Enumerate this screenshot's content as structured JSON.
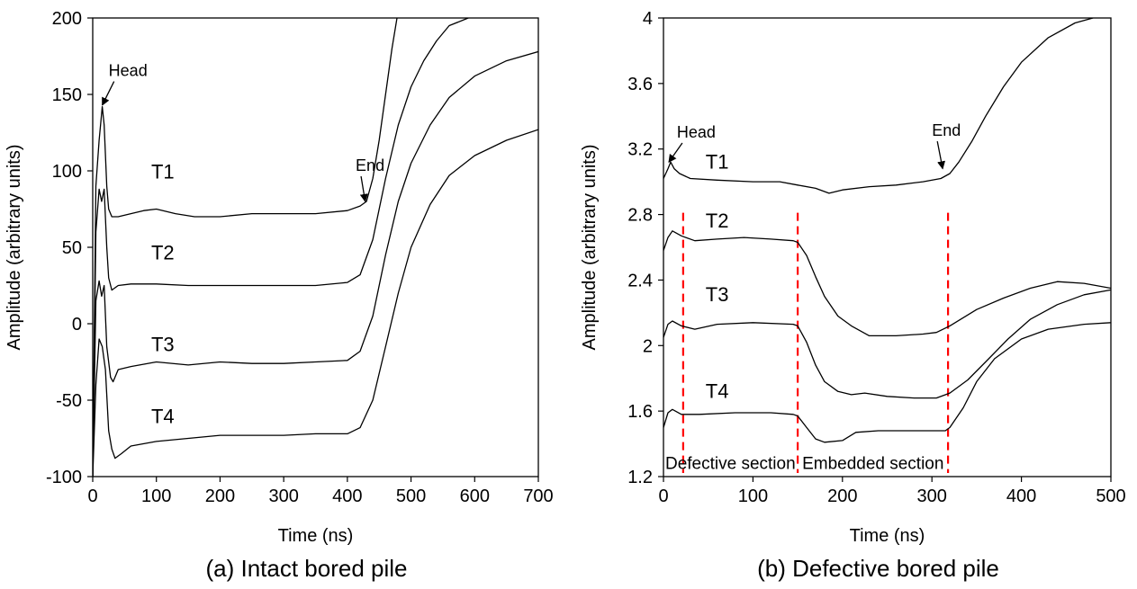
{
  "chart_data": [
    {
      "type": "line",
      "caption": "(a) Intact bored pile",
      "xlabel": "Time (ns)",
      "ylabel": "Amplitude (arbitrary units)",
      "xlim": [
        0,
        700
      ],
      "ylim": [
        -100,
        200
      ],
      "xticks": [
        0,
        100,
        200,
        300,
        400,
        500,
        600,
        700
      ],
      "yticks": [
        -100,
        -50,
        0,
        50,
        100,
        150,
        200
      ],
      "grid": false,
      "series": [
        {
          "name": "T1",
          "label_at": [
            110,
            95
          ],
          "points": [
            [
              0,
              -100
            ],
            [
              5,
              90
            ],
            [
              10,
              120
            ],
            [
              15,
              142
            ],
            [
              18,
              130
            ],
            [
              22,
              90
            ],
            [
              25,
              75
            ],
            [
              30,
              70
            ],
            [
              40,
              70
            ],
            [
              60,
              72
            ],
            [
              80,
              74
            ],
            [
              100,
              75
            ],
            [
              130,
              72
            ],
            [
              160,
              70
            ],
            [
              200,
              70
            ],
            [
              250,
              72
            ],
            [
              300,
              72
            ],
            [
              350,
              72
            ],
            [
              400,
              74
            ],
            [
              420,
              77
            ],
            [
              430,
              80
            ],
            [
              440,
              95
            ],
            [
              450,
              120
            ],
            [
              460,
              150
            ],
            [
              470,
              180
            ],
            [
              478,
              200
            ]
          ]
        },
        {
          "name": "T2",
          "label_at": [
            110,
            42
          ],
          "points": [
            [
              0,
              -100
            ],
            [
              5,
              60
            ],
            [
              10,
              88
            ],
            [
              14,
              80
            ],
            [
              18,
              88
            ],
            [
              22,
              50
            ],
            [
              25,
              30
            ],
            [
              30,
              22
            ],
            [
              40,
              25
            ],
            [
              60,
              26
            ],
            [
              100,
              26
            ],
            [
              150,
              25
            ],
            [
              200,
              25
            ],
            [
              250,
              25
            ],
            [
              300,
              25
            ],
            [
              350,
              25
            ],
            [
              400,
              27
            ],
            [
              420,
              32
            ],
            [
              440,
              55
            ],
            [
              460,
              95
            ],
            [
              480,
              130
            ],
            [
              500,
              155
            ],
            [
              520,
              172
            ],
            [
              540,
              185
            ],
            [
              560,
              195
            ],
            [
              590,
              200
            ]
          ]
        },
        {
          "name": "T3",
          "label_at": [
            110,
            -18
          ],
          "points": [
            [
              0,
              -100
            ],
            [
              5,
              15
            ],
            [
              10,
              28
            ],
            [
              14,
              18
            ],
            [
              18,
              25
            ],
            [
              22,
              -15
            ],
            [
              28,
              -35
            ],
            [
              32,
              -38
            ],
            [
              40,
              -30
            ],
            [
              60,
              -28
            ],
            [
              100,
              -25
            ],
            [
              150,
              -27
            ],
            [
              200,
              -25
            ],
            [
              250,
              -26
            ],
            [
              300,
              -26
            ],
            [
              350,
              -25
            ],
            [
              400,
              -24
            ],
            [
              420,
              -18
            ],
            [
              440,
              5
            ],
            [
              460,
              45
            ],
            [
              480,
              80
            ],
            [
              500,
              105
            ],
            [
              530,
              130
            ],
            [
              560,
              148
            ],
            [
              600,
              162
            ],
            [
              650,
              172
            ],
            [
              700,
              178
            ]
          ]
        },
        {
          "name": "T4",
          "label_at": [
            110,
            -65
          ],
          "points": [
            [
              0,
              -100
            ],
            [
              5,
              -40
            ],
            [
              10,
              -10
            ],
            [
              15,
              -15
            ],
            [
              20,
              -30
            ],
            [
              25,
              -70
            ],
            [
              30,
              -82
            ],
            [
              35,
              -88
            ],
            [
              45,
              -85
            ],
            [
              60,
              -80
            ],
            [
              100,
              -77
            ],
            [
              150,
              -75
            ],
            [
              200,
              -73
            ],
            [
              250,
              -73
            ],
            [
              300,
              -73
            ],
            [
              350,
              -72
            ],
            [
              400,
              -72
            ],
            [
              420,
              -68
            ],
            [
              440,
              -50
            ],
            [
              460,
              -15
            ],
            [
              480,
              20
            ],
            [
              500,
              50
            ],
            [
              530,
              78
            ],
            [
              560,
              97
            ],
            [
              600,
              110
            ],
            [
              650,
              120
            ],
            [
              700,
              127
            ]
          ]
        }
      ],
      "annotations": [
        {
          "text": "Head",
          "x": 25,
          "y": 162,
          "arrow_to": [
            15,
            143
          ]
        },
        {
          "text": "End",
          "x": 413,
          "y": 100,
          "arrow_to": [
            428,
            80
          ]
        }
      ]
    },
    {
      "type": "line",
      "caption": "(b) Defective bored pile",
      "xlabel": "Time (ns)",
      "ylabel": "Amplitude (arbitrary units)",
      "xlim": [
        0,
        500
      ],
      "ylim": [
        1.2,
        4
      ],
      "xticks": [
        0,
        100,
        200,
        300,
        400,
        500
      ],
      "yticks": [
        1.2,
        1.6,
        2,
        2.4,
        2.8,
        3.2,
        3.6,
        4
      ],
      "ytick_labels": [
        "1.2",
        "1.6",
        "2",
        "2.4",
        "2.8",
        "3.2",
        "3.6",
        "4"
      ],
      "grid": false,
      "series": [
        {
          "name": "T1",
          "label_at": [
            60,
            3.08
          ],
          "points": [
            [
              0,
              3.02
            ],
            [
              5,
              3.08
            ],
            [
              8,
              3.12
            ],
            [
              12,
              3.08
            ],
            [
              18,
              3.05
            ],
            [
              30,
              3.02
            ],
            [
              60,
              3.01
            ],
            [
              100,
              3.0
            ],
            [
              130,
              3.0
            ],
            [
              150,
              2.98
            ],
            [
              170,
              2.96
            ],
            [
              185,
              2.93
            ],
            [
              200,
              2.95
            ],
            [
              230,
              2.97
            ],
            [
              260,
              2.98
            ],
            [
              290,
              3.0
            ],
            [
              310,
              3.02
            ],
            [
              320,
              3.05
            ],
            [
              330,
              3.12
            ],
            [
              345,
              3.25
            ],
            [
              360,
              3.4
            ],
            [
              380,
              3.58
            ],
            [
              400,
              3.73
            ],
            [
              430,
              3.88
            ],
            [
              460,
              3.97
            ],
            [
              480,
              4.0
            ]
          ]
        },
        {
          "name": "T2",
          "label_at": [
            60,
            2.72
          ],
          "points": [
            [
              0,
              2.58
            ],
            [
              5,
              2.66
            ],
            [
              10,
              2.7
            ],
            [
              20,
              2.67
            ],
            [
              35,
              2.64
            ],
            [
              60,
              2.65
            ],
            [
              90,
              2.66
            ],
            [
              120,
              2.65
            ],
            [
              145,
              2.64
            ],
            [
              150,
              2.63
            ],
            [
              160,
              2.55
            ],
            [
              170,
              2.42
            ],
            [
              180,
              2.3
            ],
            [
              195,
              2.18
            ],
            [
              210,
              2.12
            ],
            [
              230,
              2.06
            ],
            [
              260,
              2.06
            ],
            [
              290,
              2.07
            ],
            [
              305,
              2.08
            ],
            [
              320,
              2.12
            ],
            [
              350,
              2.22
            ],
            [
              380,
              2.29
            ],
            [
              410,
              2.35
            ],
            [
              440,
              2.39
            ],
            [
              470,
              2.38
            ],
            [
              500,
              2.35
            ]
          ]
        },
        {
          "name": "T3",
          "label_at": [
            60,
            2.27
          ],
          "points": [
            [
              0,
              2.05
            ],
            [
              5,
              2.13
            ],
            [
              10,
              2.15
            ],
            [
              20,
              2.12
            ],
            [
              35,
              2.1
            ],
            [
              60,
              2.13
            ],
            [
              100,
              2.14
            ],
            [
              145,
              2.13
            ],
            [
              150,
              2.12
            ],
            [
              160,
              2.02
            ],
            [
              170,
              1.88
            ],
            [
              180,
              1.78
            ],
            [
              195,
              1.72
            ],
            [
              210,
              1.7
            ],
            [
              225,
              1.71
            ],
            [
              250,
              1.69
            ],
            [
              280,
              1.68
            ],
            [
              305,
              1.68
            ],
            [
              320,
              1.71
            ],
            [
              340,
              1.79
            ],
            [
              360,
              1.9
            ],
            [
              385,
              2.04
            ],
            [
              410,
              2.16
            ],
            [
              440,
              2.25
            ],
            [
              470,
              2.31
            ],
            [
              500,
              2.34
            ]
          ]
        },
        {
          "name": "T4",
          "label_at": [
            60,
            1.68
          ],
          "points": [
            [
              0,
              1.5
            ],
            [
              5,
              1.59
            ],
            [
              10,
              1.61
            ],
            [
              20,
              1.58
            ],
            [
              40,
              1.58
            ],
            [
              80,
              1.59
            ],
            [
              120,
              1.59
            ],
            [
              145,
              1.58
            ],
            [
              150,
              1.57
            ],
            [
              160,
              1.5
            ],
            [
              170,
              1.43
            ],
            [
              180,
              1.41
            ],
            [
              200,
              1.42
            ],
            [
              215,
              1.47
            ],
            [
              240,
              1.48
            ],
            [
              280,
              1.48
            ],
            [
              300,
              1.48
            ],
            [
              315,
              1.48
            ],
            [
              320,
              1.5
            ],
            [
              335,
              1.62
            ],
            [
              350,
              1.78
            ],
            [
              370,
              1.92
            ],
            [
              400,
              2.04
            ],
            [
              430,
              2.1
            ],
            [
              470,
              2.13
            ],
            [
              500,
              2.14
            ]
          ]
        }
      ],
      "markers": [
        {
          "x": 22,
          "color": "#ff0000",
          "style": "dashed"
        },
        {
          "x": 150,
          "color": "#ff0000",
          "style": "dashed"
        },
        {
          "x": 318,
          "color": "#ff0000",
          "style": "dashed"
        }
      ],
      "marker_labels": [
        {
          "text": "Defective section",
          "x": 2,
          "y": 1.285
        },
        {
          "text": "Embedded section",
          "x": 155,
          "y": 1.285
        }
      ],
      "annotations": [
        {
          "text": "Head",
          "x": 15,
          "y": 3.27,
          "arrow_to": [
            6,
            3.12
          ]
        },
        {
          "text": "End",
          "x": 300,
          "y": 3.28,
          "arrow_to": [
            312,
            3.08
          ]
        }
      ]
    }
  ]
}
